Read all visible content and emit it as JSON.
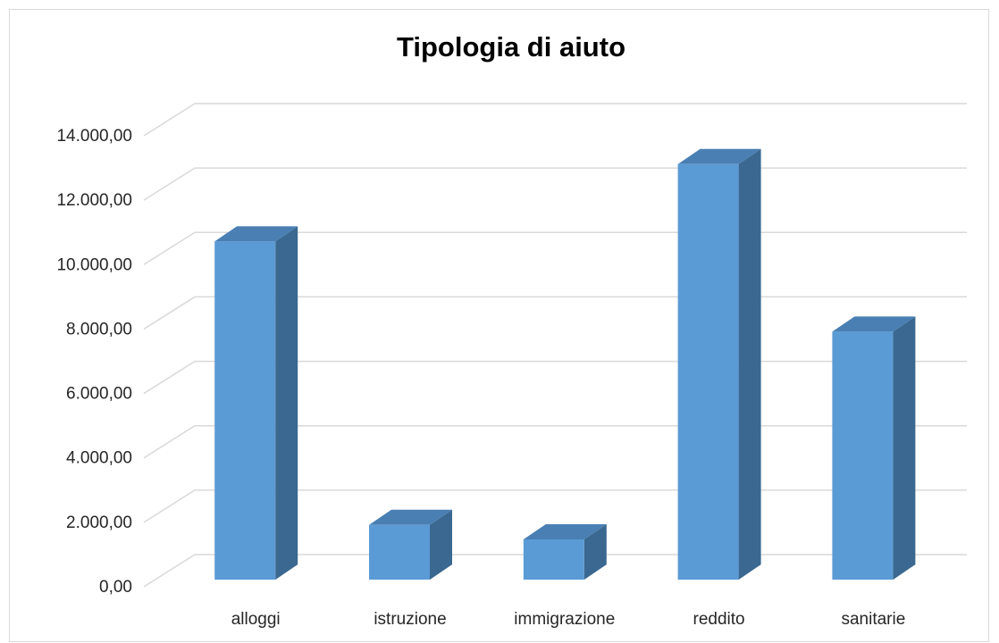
{
  "chart_data": {
    "type": "bar",
    "title": "Tipologia di aiuto",
    "xlabel": "",
    "ylabel": "",
    "categories": [
      "alloggi",
      "istruzione",
      "immigrazione",
      "reddito",
      "sanitarie"
    ],
    "values": [
      10500,
      1700,
      1250,
      12900,
      7700
    ],
    "ylim": [
      0,
      14000
    ],
    "y_ticks": [
      {
        "value": 0,
        "label": "0,00"
      },
      {
        "value": 2000,
        "label": "2.000,00"
      },
      {
        "value": 4000,
        "label": "4.000,00"
      },
      {
        "value": 6000,
        "label": "6.000,00"
      },
      {
        "value": 8000,
        "label": "8.000,00"
      },
      {
        "value": 10000,
        "label": "10.000,00"
      },
      {
        "value": 12000,
        "label": "12.000,00"
      },
      {
        "value": 14000,
        "label": "14.000,00"
      }
    ],
    "grid": true,
    "legend": "none",
    "style": "3d-column",
    "colors": {
      "bar_front": "#5b9bd5",
      "bar_side": "#3a6890",
      "bar_top": "#4a7fb3",
      "grid": "#d9d9d9"
    }
  }
}
